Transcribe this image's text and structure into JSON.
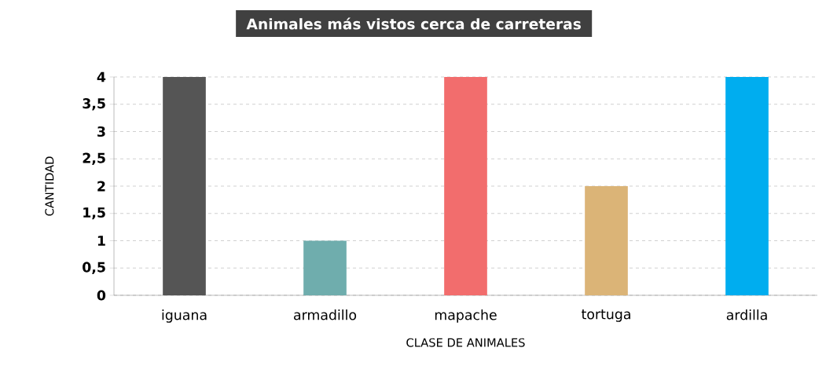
{
  "chart_data": {
    "type": "bar",
    "title": "Animales más vistos cerca de carreteras",
    "xlabel": "CLASE DE ANIMALES",
    "ylabel": "CANTIDAD",
    "categories": [
      "iguana",
      "armadillo",
      "mapache",
      "tortuga",
      "ardilla"
    ],
    "values": [
      4,
      1,
      4,
      2,
      4
    ],
    "colors": [
      "#555555",
      "#6fadad",
      "#f26d6d",
      "#dbb477",
      "#00adef"
    ],
    "ylim": [
      0,
      4
    ],
    "yticks": [
      0,
      {
        "value": 0.5,
        "label": "0,5"
      },
      1,
      {
        "value": 1.5,
        "label": "1,5"
      },
      2,
      {
        "value": 2.5,
        "label": "2,5"
      },
      3,
      {
        "value": 3.5,
        "label": "3,5"
      },
      4
    ],
    "grid": "y"
  }
}
